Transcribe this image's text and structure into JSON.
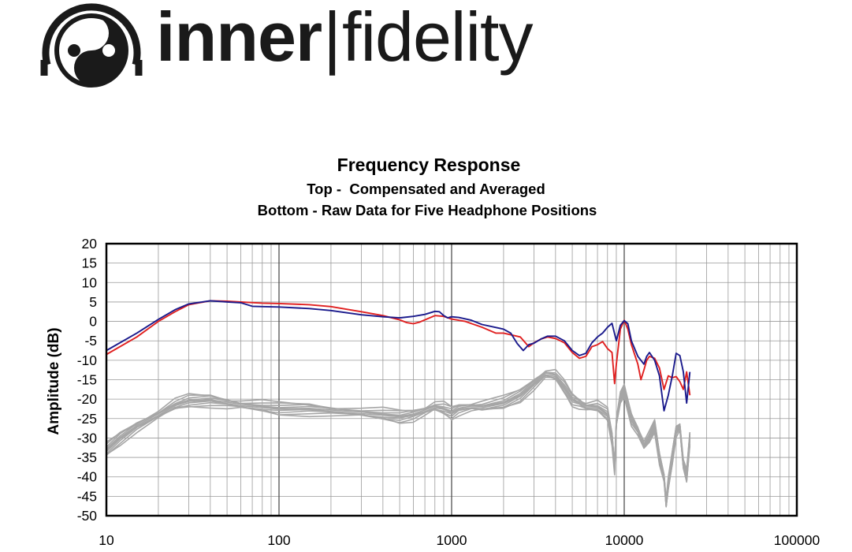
{
  "logo": {
    "brand_bold": "inner",
    "separator": "|",
    "brand_light": "fidelity",
    "mark_icon": "yin-yang-headphone-icon"
  },
  "chart_data": {
    "type": "line",
    "title": "Frequency Response",
    "subtitle_1": "Top -  Compensated and Averaged",
    "subtitle_2": "Bottom - Raw Data for Five Headphone Positions",
    "xlabel": "",
    "ylabel": "Amplitude (dB)",
    "xscale": "log",
    "xlim": [
      10,
      100000
    ],
    "ylim": [
      -50,
      20
    ],
    "x_ticks": [
      "10",
      "100",
      "1000",
      "10000",
      "100000"
    ],
    "y_ticks": [
      "20",
      "15",
      "10",
      "5",
      "0",
      "-5",
      "-10",
      "-15",
      "-20",
      "-25",
      "-30",
      "-35",
      "-40",
      "-45",
      "-50"
    ],
    "grid": true,
    "legend": "none",
    "colors": {
      "left": "#1a1a8c",
      "right": "#e02020",
      "raw": "#a6a6a6"
    },
    "series": [
      {
        "channel": "left",
        "points": [
          [
            10,
            -7.5
          ],
          [
            15,
            -3
          ],
          [
            20,
            0.5
          ],
          [
            25,
            3
          ],
          [
            30,
            4.5
          ],
          [
            40,
            5.3
          ],
          [
            50,
            5
          ],
          [
            60,
            4.8
          ],
          [
            70,
            3.9
          ],
          [
            80,
            3.8
          ],
          [
            100,
            3.7
          ],
          [
            150,
            3.3
          ],
          [
            200,
            2.8
          ],
          [
            300,
            1.7
          ],
          [
            400,
            1.2
          ],
          [
            500,
            0.9
          ],
          [
            600,
            1.3
          ],
          [
            700,
            1.8
          ],
          [
            800,
            2.6
          ],
          [
            850,
            2.5
          ],
          [
            900,
            1.5
          ],
          [
            950,
            0.9
          ],
          [
            1000,
            1.2
          ],
          [
            1100,
            1
          ],
          [
            1300,
            0.3
          ],
          [
            1500,
            -0.8
          ],
          [
            2000,
            -2
          ],
          [
            2200,
            -3
          ],
          [
            2400,
            -5.7
          ],
          [
            2600,
            -7.5
          ],
          [
            2800,
            -6
          ],
          [
            3000,
            -5.6
          ],
          [
            3300,
            -4.5
          ],
          [
            3600,
            -3.8
          ],
          [
            4000,
            -3.8
          ],
          [
            4500,
            -5
          ],
          [
            5000,
            -7.5
          ],
          [
            5500,
            -8.8
          ],
          [
            6000,
            -8.2
          ],
          [
            6500,
            -5.5
          ],
          [
            7000,
            -4
          ],
          [
            7500,
            -3
          ],
          [
            8000,
            -1.5
          ],
          [
            8500,
            -0.5
          ],
          [
            9000,
            -5
          ],
          [
            9500,
            -1
          ],
          [
            10000,
            0.2
          ],
          [
            10500,
            -0.6
          ],
          [
            11000,
            -5
          ],
          [
            12000,
            -9
          ],
          [
            13000,
            -11
          ],
          [
            13500,
            -9
          ],
          [
            14000,
            -8
          ],
          [
            15000,
            -10
          ],
          [
            16000,
            -14
          ],
          [
            17000,
            -23
          ],
          [
            18000,
            -19
          ],
          [
            19000,
            -14
          ],
          [
            20000,
            -8.2
          ],
          [
            21000,
            -8.8
          ],
          [
            22000,
            -13
          ],
          [
            23000,
            -21
          ],
          [
            24000,
            -13
          ]
        ]
      },
      {
        "channel": "right",
        "points": [
          [
            10,
            -8.5
          ],
          [
            15,
            -4
          ],
          [
            20,
            0
          ],
          [
            25,
            2.5
          ],
          [
            30,
            4.3
          ],
          [
            40,
            5.3
          ],
          [
            50,
            5.2
          ],
          [
            60,
            5
          ],
          [
            80,
            4.7
          ],
          [
            100,
            4.6
          ],
          [
            150,
            4.3
          ],
          [
            200,
            3.8
          ],
          [
            300,
            2.5
          ],
          [
            400,
            1.5
          ],
          [
            500,
            0.4
          ],
          [
            550,
            -0.3
          ],
          [
            600,
            -0.6
          ],
          [
            650,
            -0.2
          ],
          [
            700,
            0.4
          ],
          [
            800,
            1.5
          ],
          [
            900,
            1.3
          ],
          [
            1000,
            0.6
          ],
          [
            1200,
            0
          ],
          [
            1500,
            -1.5
          ],
          [
            1800,
            -3
          ],
          [
            2000,
            -3
          ],
          [
            2500,
            -4
          ],
          [
            2800,
            -6.5
          ],
          [
            3000,
            -5.5
          ],
          [
            3300,
            -4.5
          ],
          [
            3600,
            -4
          ],
          [
            4000,
            -4.4
          ],
          [
            4500,
            -5.5
          ],
          [
            5000,
            -8
          ],
          [
            5500,
            -9.5
          ],
          [
            6000,
            -9
          ],
          [
            6500,
            -6.5
          ],
          [
            7000,
            -6
          ],
          [
            7500,
            -5.2
          ],
          [
            8000,
            -7
          ],
          [
            8500,
            -8
          ],
          [
            8800,
            -16
          ],
          [
            9000,
            -11
          ],
          [
            9500,
            -2
          ],
          [
            10000,
            0.3
          ],
          [
            10500,
            -2
          ],
          [
            11000,
            -6
          ],
          [
            12000,
            -11
          ],
          [
            12500,
            -15
          ],
          [
            13000,
            -12.5
          ],
          [
            13500,
            -10
          ],
          [
            14000,
            -9
          ],
          [
            15000,
            -9.5
          ],
          [
            16000,
            -12
          ],
          [
            17000,
            -17.5
          ],
          [
            18000,
            -14
          ],
          [
            19000,
            -14.5
          ],
          [
            20000,
            -14.2
          ],
          [
            21000,
            -15.5
          ],
          [
            22000,
            -17.5
          ],
          [
            23000,
            -13
          ],
          [
            24000,
            -19
          ]
        ]
      },
      {
        "channel": "raw",
        "points": [
          [
            10,
            -33
          ],
          [
            12,
            -30
          ],
          [
            15,
            -27
          ],
          [
            20,
            -24
          ],
          [
            25,
            -21.5
          ],
          [
            30,
            -20.5
          ],
          [
            40,
            -20.3
          ],
          [
            50,
            -21
          ],
          [
            60,
            -21.5
          ],
          [
            80,
            -22
          ],
          [
            100,
            -22.5
          ],
          [
            150,
            -22.5
          ],
          [
            200,
            -23
          ],
          [
            300,
            -23.5
          ],
          [
            400,
            -24
          ],
          [
            500,
            -24.5
          ],
          [
            600,
            -24
          ],
          [
            700,
            -23
          ],
          [
            800,
            -22
          ],
          [
            900,
            -22.5
          ],
          [
            1000,
            -23.5
          ],
          [
            1100,
            -22.5
          ],
          [
            1300,
            -22
          ],
          [
            1500,
            -22
          ],
          [
            2000,
            -21
          ],
          [
            2500,
            -19
          ],
          [
            3000,
            -16
          ],
          [
            3500,
            -13.5
          ],
          [
            4000,
            -14
          ],
          [
            4500,
            -17
          ],
          [
            5000,
            -20
          ],
          [
            5500,
            -21
          ],
          [
            6000,
            -22
          ],
          [
            7000,
            -22
          ],
          [
            8000,
            -24
          ],
          [
            8500,
            -30
          ],
          [
            8800,
            -38
          ],
          [
            9000,
            -26
          ],
          [
            9500,
            -20
          ],
          [
            10000,
            -18
          ],
          [
            11000,
            -25
          ],
          [
            12000,
            -28
          ],
          [
            13000,
            -32
          ],
          [
            14000,
            -30
          ],
          [
            15000,
            -27
          ],
          [
            16000,
            -35
          ],
          [
            17000,
            -40
          ],
          [
            17500,
            -47
          ],
          [
            18000,
            -42
          ],
          [
            19000,
            -35
          ],
          [
            20000,
            -28
          ],
          [
            21000,
            -27
          ],
          [
            22000,
            -37
          ],
          [
            23000,
            -40
          ],
          [
            24000,
            -30
          ]
        ]
      }
    ],
    "raw_spread_db": 2.5
  }
}
